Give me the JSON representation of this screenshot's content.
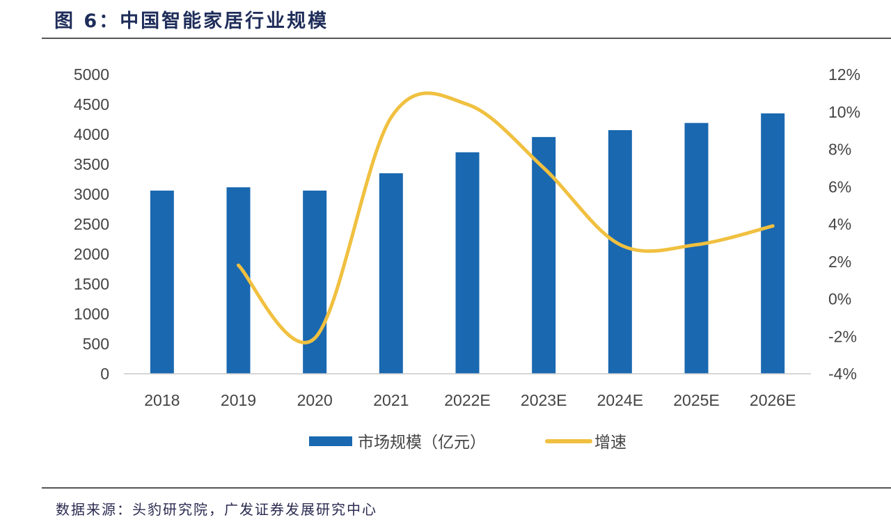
{
  "title": "图 6：中国智能家居行业规模",
  "source": "数据来源：头豹研究院，广发证券发展研究中心",
  "colors": {
    "bar": "#1a68b0",
    "line": "#f0c040",
    "title": "#1f2d5a"
  },
  "chart_data": {
    "type": "bar+line",
    "title": "图 6：中国智能家居行业规模",
    "categories": [
      "2018",
      "2019",
      "2020",
      "2021",
      "2022E",
      "2023E",
      "2024E",
      "2025E",
      "2026E"
    ],
    "series": [
      {
        "name": "市场规模（亿元）",
        "type": "bar",
        "axis": "left",
        "values": [
          3060,
          3115,
          3060,
          3350,
          3700,
          3955,
          4070,
          4190,
          4350
        ]
      },
      {
        "name": "增速",
        "type": "line",
        "axis": "right",
        "unit": "%",
        "values": [
          null,
          1.8,
          -2.1,
          9.7,
          10.4,
          7.0,
          2.9,
          2.9,
          3.9
        ]
      }
    ],
    "left_axis": {
      "ylim": [
        0,
        5000
      ],
      "ticks": [
        0,
        500,
        1000,
        1500,
        2000,
        2500,
        3000,
        3500,
        4000,
        4500,
        5000
      ]
    },
    "right_axis": {
      "ylim": [
        -4,
        12
      ],
      "ticks": [
        "-4%",
        "-2%",
        "0%",
        "2%",
        "4%",
        "6%",
        "8%",
        "10%",
        "12%"
      ]
    },
    "grid": false,
    "legend": "bottom"
  }
}
